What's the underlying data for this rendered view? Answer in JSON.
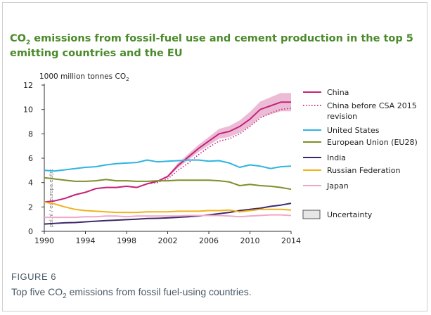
{
  "figure": {
    "label": "FIGURE 6",
    "caption_pre": "Top five CO",
    "caption_sub": "2",
    "caption_post": " emissions from fossil fuel-using countries."
  },
  "chart_data": {
    "type": "line",
    "title_pre": "CO",
    "title_sub": "2",
    "title_post": " emissions from fossil-fuel use and cement production in the top 5 emitting countries and the EU",
    "ylabel_pre": "1000 million tonnes CO",
    "ylabel_sub": "2",
    "watermark": "pbl.nl / ec.europa.eu/jrc",
    "xlim": [
      1990,
      2014
    ],
    "ylim": [
      0,
      12
    ],
    "xticks": [
      1990,
      1994,
      1998,
      2002,
      2006,
      2010,
      2014
    ],
    "yticks": [
      0,
      2,
      4,
      6,
      8,
      10,
      12
    ],
    "x": [
      1990,
      1991,
      1992,
      1993,
      1994,
      1995,
      1996,
      1997,
      1998,
      1999,
      2000,
      2001,
      2002,
      2003,
      2004,
      2005,
      2006,
      2007,
      2008,
      2009,
      2010,
      2011,
      2012,
      2013,
      2014
    ],
    "series": [
      {
        "name": "China",
        "color": "#c4237a",
        "style": "solid",
        "band": "#e6a6c8",
        "values": [
          2.4,
          2.5,
          2.7,
          3.0,
          3.2,
          3.5,
          3.6,
          3.6,
          3.7,
          3.6,
          3.9,
          4.1,
          4.5,
          5.4,
          6.1,
          6.8,
          7.4,
          8.0,
          8.2,
          8.6,
          9.2,
          10.0,
          10.3,
          10.6,
          10.6
        ],
        "lower": [
          2.35,
          2.45,
          2.65,
          2.95,
          3.15,
          3.45,
          3.55,
          3.55,
          3.65,
          3.55,
          3.85,
          4.05,
          4.4,
          5.2,
          5.85,
          6.5,
          7.05,
          7.6,
          7.75,
          8.1,
          8.6,
          9.35,
          9.6,
          9.85,
          9.85
        ],
        "upper": [
          2.45,
          2.55,
          2.75,
          3.05,
          3.25,
          3.55,
          3.65,
          3.65,
          3.75,
          3.65,
          3.95,
          4.15,
          4.6,
          5.6,
          6.35,
          7.1,
          7.75,
          8.4,
          8.65,
          9.1,
          9.8,
          10.65,
          11.0,
          11.35,
          11.35
        ]
      },
      {
        "name": "China before CSA 2015 revision",
        "color": "#c4237a",
        "style": "dotted",
        "values": [
          2.4,
          2.5,
          2.7,
          3.0,
          3.2,
          3.5,
          3.6,
          3.6,
          3.7,
          3.6,
          3.9,
          4.0,
          4.3,
          5.0,
          5.6,
          6.3,
          6.9,
          7.4,
          7.6,
          8.0,
          8.6,
          9.3,
          9.7,
          10.0,
          10.1
        ]
      },
      {
        "name": "United States",
        "color": "#2fb4e0",
        "style": "solid",
        "values": [
          5.0,
          4.95,
          5.05,
          5.15,
          5.25,
          5.3,
          5.45,
          5.55,
          5.6,
          5.65,
          5.85,
          5.7,
          5.75,
          5.8,
          5.85,
          5.85,
          5.75,
          5.8,
          5.6,
          5.25,
          5.45,
          5.35,
          5.15,
          5.3,
          5.35
        ]
      },
      {
        "name": "European Union (EU28)",
        "color": "#7e8f2a",
        "style": "solid",
        "values": [
          4.4,
          4.3,
          4.2,
          4.1,
          4.1,
          4.15,
          4.25,
          4.15,
          4.15,
          4.1,
          4.1,
          4.15,
          4.15,
          4.2,
          4.2,
          4.2,
          4.2,
          4.15,
          4.05,
          3.75,
          3.85,
          3.75,
          3.7,
          3.6,
          3.45
        ]
      },
      {
        "name": "India",
        "color": "#3d2a6a",
        "style": "solid",
        "values": [
          0.6,
          0.65,
          0.7,
          0.72,
          0.78,
          0.83,
          0.88,
          0.92,
          0.96,
          1.0,
          1.05,
          1.07,
          1.1,
          1.15,
          1.2,
          1.25,
          1.35,
          1.45,
          1.55,
          1.7,
          1.8,
          1.9,
          2.05,
          2.15,
          2.3
        ]
      },
      {
        "name": "Russian Federation",
        "color": "#f2b21a",
        "style": "solid",
        "values": [
          2.4,
          2.25,
          2.0,
          1.8,
          1.7,
          1.65,
          1.6,
          1.55,
          1.55,
          1.55,
          1.6,
          1.6,
          1.6,
          1.65,
          1.65,
          1.65,
          1.7,
          1.7,
          1.75,
          1.6,
          1.7,
          1.8,
          1.8,
          1.8,
          1.75
        ]
      },
      {
        "name": "Japan",
        "color": "#f0a8c8",
        "style": "solid",
        "values": [
          1.15,
          1.15,
          1.15,
          1.15,
          1.2,
          1.2,
          1.25,
          1.25,
          1.2,
          1.25,
          1.25,
          1.25,
          1.25,
          1.25,
          1.3,
          1.3,
          1.3,
          1.3,
          1.25,
          1.2,
          1.25,
          1.3,
          1.35,
          1.35,
          1.3
        ]
      }
    ],
    "legend_extra": "Uncertainty",
    "grid": false,
    "legend_position": "right"
  }
}
